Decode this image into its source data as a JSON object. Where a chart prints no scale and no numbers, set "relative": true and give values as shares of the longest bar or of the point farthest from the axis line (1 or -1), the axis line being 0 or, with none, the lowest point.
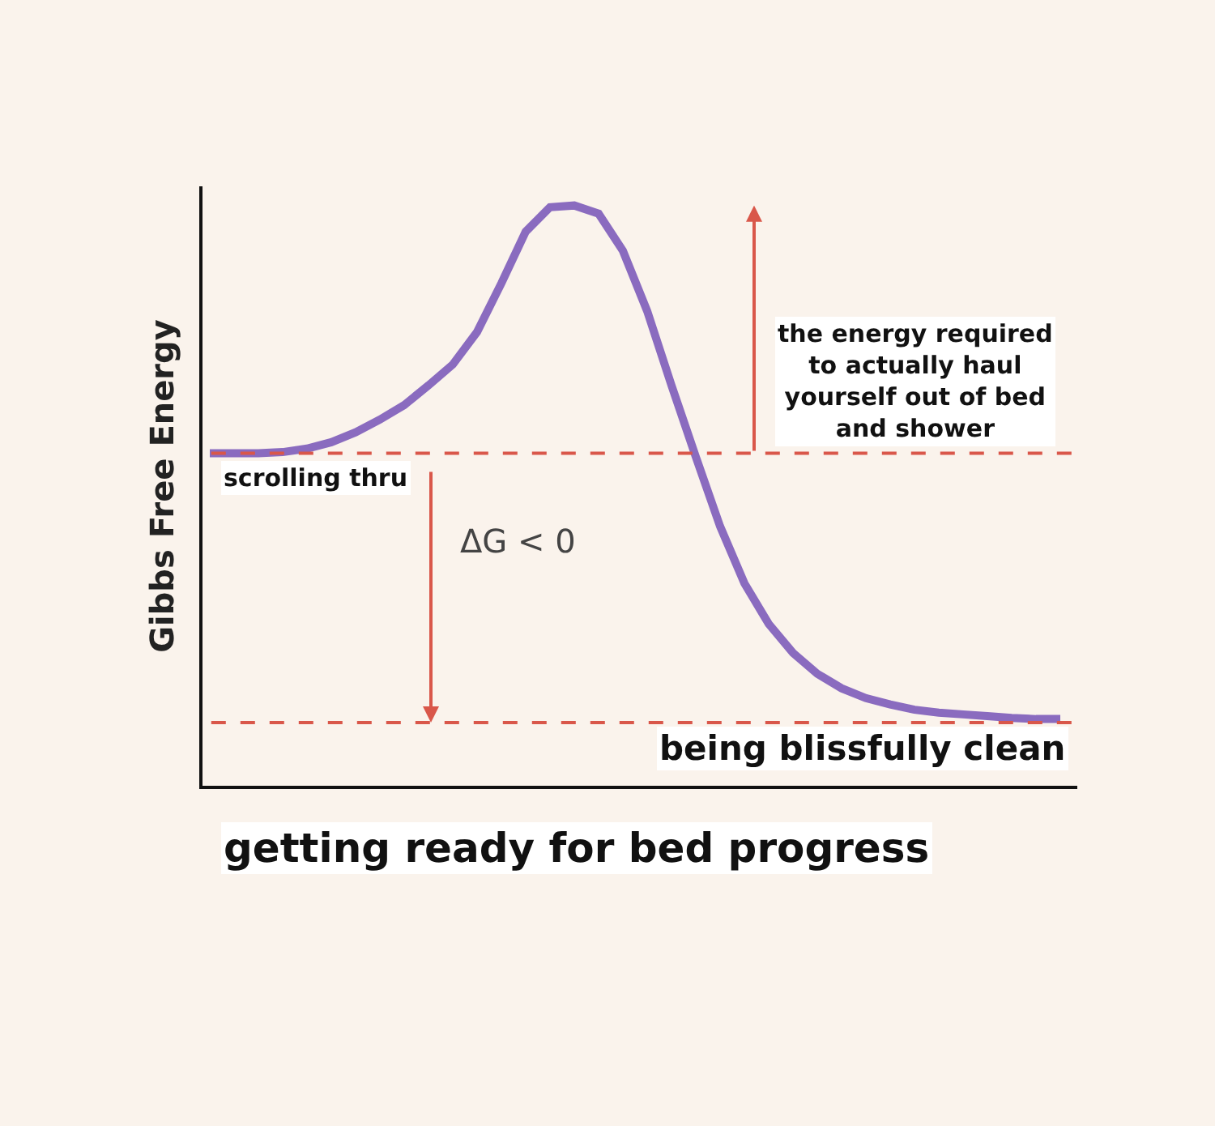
{
  "chart_data": {
    "type": "line",
    "relative": true,
    "xlabel": "getting ready for bed progress",
    "ylabel": "Gibbs Free Energy",
    "categories": [
      null,
      null,
      null,
      null,
      null,
      null,
      null,
      null,
      null,
      null,
      null,
      null,
      null,
      null,
      null,
      null,
      null,
      null,
      null,
      null,
      null,
      null,
      null,
      null,
      null,
      null,
      null,
      null,
      null,
      null,
      null,
      null,
      null,
      null,
      null,
      null
    ],
    "series": [
      {
        "color": "#8a6bbf",
        "values": [
          0.573,
          0.573,
          0.573,
          0.575,
          0.581,
          0.592,
          0.609,
          0.631,
          0.656,
          0.69,
          0.726,
          0.782,
          0.866,
          0.955,
          0.997,
          1.0,
          0.986,
          0.922,
          0.818,
          0.69,
          0.567,
          0.447,
          0.349,
          0.279,
          0.229,
          0.193,
          0.168,
          0.151,
          0.14,
          0.131,
          0.126,
          0.123,
          0.12,
          0.117,
          0.115,
          0.115
        ]
      }
    ],
    "ref_lines": [
      {
        "axis": "y",
        "value": 0.573,
        "label": "scrolling thru",
        "color": "#d9574a",
        "line_style": "dashed"
      },
      {
        "axis": "y",
        "value": 0.109,
        "label": "being blissfully clean",
        "color": "#d9574a",
        "line_style": "dashed"
      }
    ],
    "annotations": [
      "ΔG < 0",
      "the energy required\nto actually haul\nyourself out of bed\nand shower"
    ],
    "grid": false,
    "marker": "none",
    "line_style": "solid"
  }
}
